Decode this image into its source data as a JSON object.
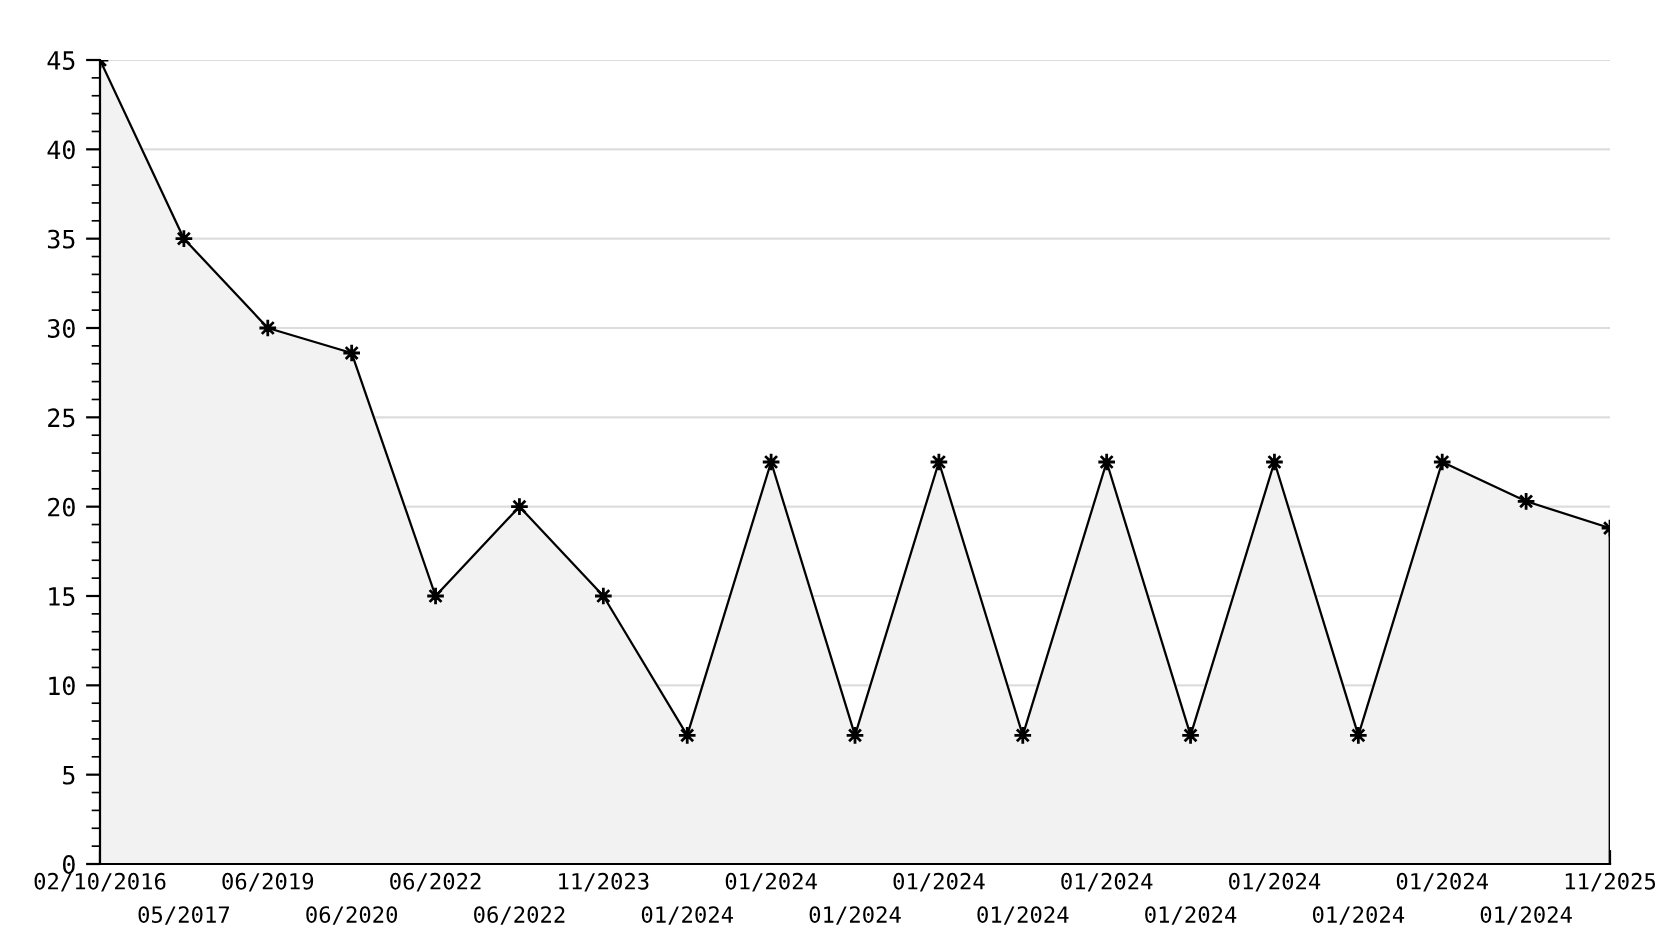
{
  "chart_data": {
    "type": "area",
    "categories": [
      "02/10/2016",
      "05/2017",
      "06/2019",
      "06/2020",
      "06/2022",
      "06/2022",
      "11/2023",
      "01/2024",
      "01/2024",
      "01/2024",
      "01/2024",
      "01/2024",
      "01/2024",
      "01/2024",
      "01/2024",
      "01/2024",
      "01/2024",
      "01/2024",
      "11/2025"
    ],
    "series": [
      {
        "color": "#000000",
        "values": [
          45,
          35,
          30,
          28.6,
          15,
          20,
          15,
          7.2,
          22.5,
          7.2,
          22.5,
          7.2,
          22.5,
          7.2,
          22.5,
          7.2,
          22.5,
          20.3,
          18.8
        ]
      }
    ],
    "ylim": [
      0,
      45
    ],
    "yticks": [
      0,
      5,
      10,
      15,
      20,
      25,
      30,
      35,
      40,
      45
    ],
    "grid": "y",
    "marker": "star",
    "line_style": "solid",
    "legend": false
  }
}
